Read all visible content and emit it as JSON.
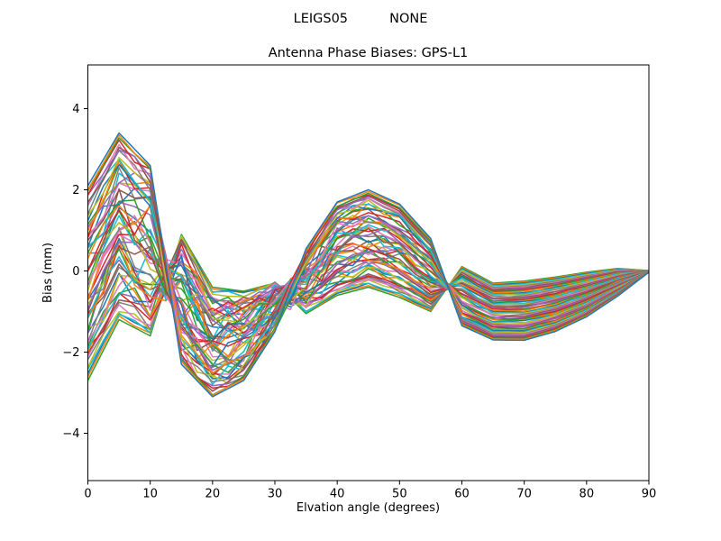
{
  "figure": {
    "suptitle": "LEIGS05          NONE",
    "background": "#ffffff",
    "spine_color": "#000000"
  },
  "chart_data": {
    "type": "line",
    "title": "Antenna Phase Biases: GPS-L1",
    "xlabel": "Elvation angle (degrees)",
    "ylabel": "Bias (mm)",
    "xlim": [
      0,
      90
    ],
    "ylim": [
      -5.2,
      5.1
    ],
    "grid": false,
    "legend": false,
    "xticks": {
      "values": [
        0,
        10,
        20,
        30,
        40,
        50,
        60,
        70,
        80,
        90
      ],
      "labels": [
        "0",
        "10",
        "20",
        "30",
        "40",
        "50",
        "60",
        "70",
        "80",
        "90"
      ]
    },
    "yticks": {
      "values": [
        -4,
        -2,
        0,
        2,
        4
      ],
      "labels": [
        "−4",
        "−2",
        "0",
        "2",
        "4"
      ]
    },
    "n_series": 63,
    "line_width": 1.5,
    "series_model": {
      "description": "Fan of ~60 overlapping antenna phase-bias curves, one per source. Each curve i is mean + a_i * signed_halfwidth + jitter, a_i uniform in amplitude_range; curves all converge to 0 mm at 90 deg. Oscillation: peak ~+3.4mm near 5 deg, trough ~-3.1mm near 20 deg, hump ~+2.0mm near 45 deg, trough ~-1.7mm near 65 deg.",
      "sample_step_deg": 2.5,
      "amplitude_range": [
        -1,
        1
      ],
      "elevations_deg": [
        0,
        5,
        10,
        15,
        20,
        25,
        30,
        35,
        40,
        45,
        50,
        55,
        60,
        65,
        70,
        75,
        80,
        85,
        90
      ],
      "mean_bias_mm": [
        -0.3,
        1.1,
        0.5,
        -0.7,
        -1.75,
        -1.6,
        -0.9,
        -0.25,
        0.55,
        0.8,
        0.5,
        -0.1,
        -0.62,
        -1.0,
        -0.98,
        -0.82,
        -0.58,
        -0.28,
        -0.01
      ],
      "signed_halfwidth_mm": [
        2.4,
        2.3,
        2.1,
        -1.6,
        -1.35,
        -1.1,
        -0.6,
        0.8,
        1.15,
        1.2,
        1.15,
        0.9,
        -0.73,
        -0.7,
        -0.73,
        -0.67,
        -0.55,
        -0.34,
        -0.02
      ],
      "jitter_mm": [
        0.45,
        0.55,
        0.7,
        0.7,
        0.45,
        0.4,
        0.45,
        0.4,
        0.28,
        0.22,
        0.18,
        0.12,
        0.06,
        0.03,
        0.02,
        0.02,
        0.01,
        0.01,
        0.0
      ],
      "envelope_upper_mm": [
        2.1,
        3.4,
        2.6,
        0.9,
        -0.4,
        -0.5,
        -0.2,
        0.55,
        1.7,
        2.0,
        1.65,
        0.8,
        0.1,
        -0.3,
        -0.25,
        -0.15,
        -0.03,
        0.06,
        0.01
      ],
      "envelope_lower_mm": [
        -2.7,
        -1.2,
        -1.6,
        -2.3,
        -3.1,
        -2.7,
        -2.0,
        -1.05,
        -0.6,
        -0.4,
        -0.65,
        -1.0,
        -1.35,
        -1.7,
        -1.71,
        -1.49,
        -1.13,
        -0.62,
        -0.03
      ]
    },
    "palette": [
      "#1f77b4",
      "#ff7f0e",
      "#2ca02c",
      "#d62728",
      "#9467bd",
      "#8c564b",
      "#e377c2",
      "#7f7f7f",
      "#bcbd22",
      "#17becf"
    ]
  }
}
